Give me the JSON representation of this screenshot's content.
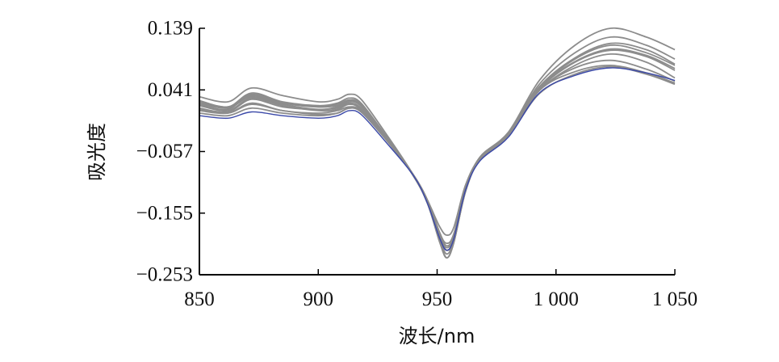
{
  "chart_data": {
    "type": "line",
    "xlabel": "波长/nm",
    "ylabel": "吸光度",
    "xlim": [
      850,
      1050
    ],
    "ylim": [
      -0.253,
      0.139
    ],
    "x_ticks": [
      850,
      900,
      950,
      1000,
      1050
    ],
    "x_tick_labels": [
      "850",
      "900",
      "950",
      "1 000",
      "1 050"
    ],
    "y_ticks": [
      0.139,
      0.041,
      -0.057,
      -0.155,
      -0.253
    ],
    "y_tick_labels": [
      "0.139",
      "0.041",
      "−0.057",
      "−0.155",
      "−0.253"
    ],
    "grid": false,
    "gray_color": "#8c8c8c",
    "blue_color": "#3a48a8",
    "x": [
      850,
      862,
      872,
      885,
      900,
      908,
      913,
      918,
      928,
      940,
      946,
      951,
      954,
      957,
      962,
      968,
      980,
      993,
      1008,
      1023,
      1038,
      1050
    ],
    "series": [
      {
        "values": [
          0.02,
          0.012,
          0.03,
          0.018,
          0.01,
          0.014,
          0.022,
          0.015,
          -0.03,
          -0.095,
          -0.14,
          -0.2,
          -0.226,
          -0.202,
          -0.12,
          -0.07,
          -0.03,
          0.04,
          0.08,
          0.098,
          0.085,
          0.06
        ]
      },
      {
        "values": [
          0.018,
          0.01,
          0.034,
          0.02,
          0.014,
          0.018,
          0.025,
          0.018,
          -0.03,
          -0.096,
          -0.14,
          -0.2,
          -0.226,
          -0.202,
          -0.12,
          -0.068,
          -0.028,
          0.046,
          0.092,
          0.115,
          0.105,
          0.082
        ]
      },
      {
        "values": [
          0.016,
          0.008,
          0.028,
          0.016,
          0.008,
          0.01,
          0.018,
          0.01,
          -0.032,
          -0.095,
          -0.14,
          -0.198,
          -0.226,
          -0.202,
          -0.12,
          -0.07,
          -0.03,
          0.042,
          0.085,
          0.104,
          0.094,
          0.072
        ]
      },
      {
        "values": [
          0.024,
          0.014,
          0.036,
          0.022,
          0.016,
          0.02,
          0.028,
          0.02,
          -0.03,
          -0.095,
          -0.135,
          -0.19,
          -0.214,
          -0.195,
          -0.115,
          -0.066,
          -0.027,
          0.05,
          0.1,
          0.125,
          0.112,
          0.09
        ]
      },
      {
        "values": [
          0.012,
          0.006,
          0.026,
          0.014,
          0.01,
          0.012,
          0.02,
          0.012,
          -0.032,
          -0.095,
          -0.135,
          -0.185,
          -0.207,
          -0.19,
          -0.114,
          -0.068,
          -0.028,
          0.044,
          0.086,
          0.106,
          0.096,
          0.075
        ]
      },
      {
        "values": [
          0.03,
          0.022,
          0.044,
          0.032,
          0.022,
          0.026,
          0.034,
          0.026,
          -0.026,
          -0.094,
          -0.136,
          -0.19,
          -0.214,
          -0.196,
          -0.116,
          -0.066,
          -0.026,
          0.056,
          0.112,
          0.139,
          0.125,
          0.105
        ]
      },
      {
        "values": [
          0.022,
          0.014,
          0.032,
          0.02,
          0.014,
          0.016,
          0.024,
          0.016,
          -0.03,
          -0.095,
          -0.138,
          -0.195,
          -0.22,
          -0.198,
          -0.118,
          -0.068,
          -0.028,
          0.044,
          0.09,
          0.112,
          0.1,
          0.08
        ]
      },
      {
        "values": [
          0.008,
          0.004,
          0.02,
          0.008,
          0.004,
          0.008,
          0.014,
          0.008,
          -0.034,
          -0.094,
          -0.138,
          -0.19,
          -0.21,
          -0.192,
          -0.116,
          -0.07,
          -0.032,
          0.04,
          0.076,
          0.088,
          0.074,
          0.055
        ]
      },
      {
        "values": [
          0.004,
          0.0,
          0.012,
          0.004,
          0.0,
          0.004,
          0.012,
          0.006,
          -0.036,
          -0.094,
          -0.135,
          -0.176,
          -0.19,
          -0.178,
          -0.11,
          -0.068,
          -0.032,
          0.035,
          0.066,
          0.078,
          0.066,
          0.05
        ]
      },
      {
        "values": [
          0.01,
          0.004,
          0.018,
          0.008,
          0.002,
          0.004,
          0.012,
          0.006,
          -0.034,
          -0.094,
          -0.135,
          -0.186,
          -0.203,
          -0.188,
          -0.115,
          -0.07,
          -0.032,
          0.04,
          0.07,
          0.08,
          0.068,
          0.052
        ]
      },
      {
        "values": [
          0.0,
          -0.004,
          0.006,
          0.0,
          -0.004,
          0.0,
          0.008,
          0.002,
          -0.04,
          -0.095,
          -0.14,
          -0.194,
          -0.214,
          -0.196,
          -0.118,
          -0.072,
          -0.034,
          0.036,
          0.064,
          0.076,
          0.068,
          0.056
        ]
      }
    ],
    "highlight_index": 10
  }
}
